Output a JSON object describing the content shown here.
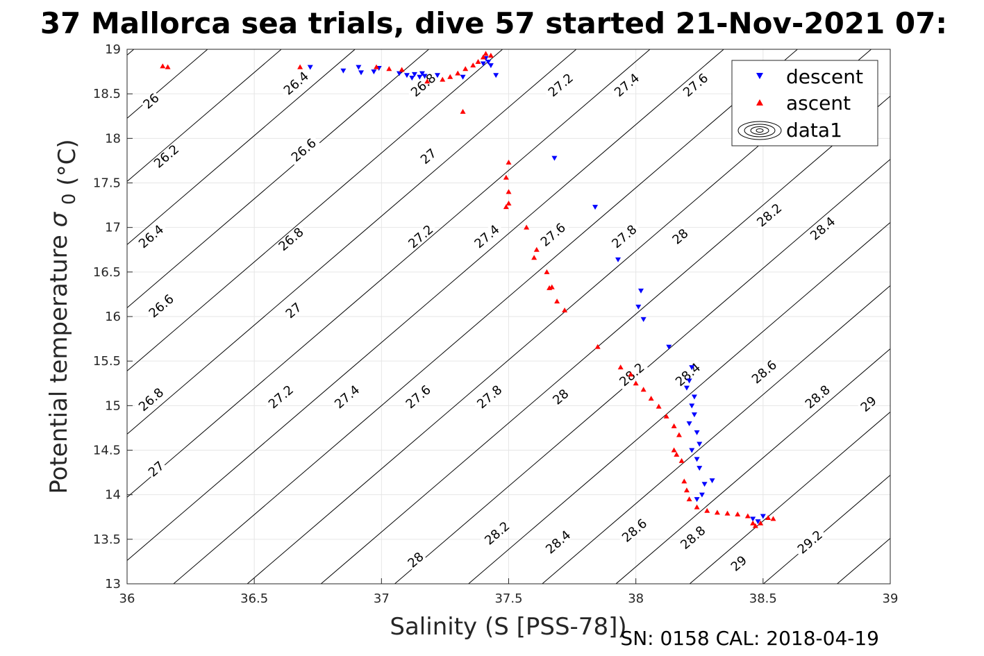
{
  "chart_data": {
    "type": "scatter",
    "title": "37 Mallorca sea trials, dive 57 started 21-Nov-2021 07:",
    "xlabel": "Salinity (S [PSS-78])",
    "ylabel_main": "Potential temperature",
    "ylabel_symbol": "σ",
    "ylabel_subscript": "0",
    "ylabel_unit": "(°C)",
    "xlim": [
      36,
      39
    ],
    "ylim": [
      13,
      19
    ],
    "xticks": [
      "36",
      "36.5",
      "37",
      "37.5",
      "38",
      "38.5",
      "39"
    ],
    "yticks": [
      "13",
      "13.5",
      "14",
      "14.5",
      "15",
      "15.5",
      "16",
      "16.5",
      "17",
      "17.5",
      "18",
      "18.5",
      "19"
    ],
    "grid": true,
    "legend_position": "top-right",
    "colors": {
      "descent": "#0000ff",
      "ascent": "#ff0000",
      "contour": "#000000",
      "grid": "#e6e6e6"
    },
    "series": [
      {
        "name": "descent",
        "marker": "triangle-down",
        "points": [
          [
            36.72,
            18.8
          ],
          [
            36.85,
            18.76
          ],
          [
            36.91,
            18.8
          ],
          [
            36.92,
            18.74
          ],
          [
            36.97,
            18.75
          ],
          [
            36.99,
            18.79
          ],
          [
            37.07,
            18.73
          ],
          [
            37.1,
            18.71
          ],
          [
            37.12,
            18.68
          ],
          [
            37.13,
            18.72
          ],
          [
            37.15,
            18.69
          ],
          [
            37.16,
            18.73
          ],
          [
            37.17,
            18.7
          ],
          [
            37.22,
            18.71
          ],
          [
            37.32,
            18.69
          ],
          [
            37.4,
            18.84
          ],
          [
            37.41,
            18.9
          ],
          [
            37.42,
            18.86
          ],
          [
            37.43,
            18.82
          ],
          [
            37.45,
            18.71
          ],
          [
            37.68,
            17.78
          ],
          [
            37.84,
            17.23
          ],
          [
            37.93,
            16.64
          ],
          [
            38.01,
            16.11
          ],
          [
            38.02,
            16.29
          ],
          [
            38.03,
            15.97
          ],
          [
            38.13,
            15.66
          ],
          [
            38.2,
            15.2
          ],
          [
            38.21,
            15.28
          ],
          [
            38.22,
            15.43
          ],
          [
            38.23,
            15.1
          ],
          [
            38.22,
            15.0
          ],
          [
            38.23,
            14.9
          ],
          [
            38.21,
            14.8
          ],
          [
            38.24,
            14.7
          ],
          [
            38.25,
            14.57
          ],
          [
            38.22,
            14.5
          ],
          [
            38.24,
            14.4
          ],
          [
            38.25,
            14.3
          ],
          [
            38.27,
            14.12
          ],
          [
            38.3,
            14.16
          ],
          [
            38.26,
            14.0
          ],
          [
            38.24,
            13.95
          ],
          [
            38.46,
            13.73
          ],
          [
            38.48,
            13.7
          ],
          [
            38.5,
            13.76
          ]
        ]
      },
      {
        "name": "ascent",
        "marker": "triangle-up",
        "points": [
          [
            36.14,
            18.81
          ],
          [
            36.16,
            18.8
          ],
          [
            36.68,
            18.8
          ],
          [
            36.98,
            18.8
          ],
          [
            37.03,
            18.78
          ],
          [
            37.08,
            18.77
          ],
          [
            37.18,
            18.64
          ],
          [
            37.24,
            18.66
          ],
          [
            37.27,
            18.69
          ],
          [
            37.3,
            18.73
          ],
          [
            37.33,
            18.78
          ],
          [
            37.36,
            18.82
          ],
          [
            37.38,
            18.86
          ],
          [
            37.4,
            18.91
          ],
          [
            37.41,
            18.95
          ],
          [
            37.43,
            18.93
          ],
          [
            37.32,
            18.3
          ],
          [
            37.5,
            17.73
          ],
          [
            37.49,
            17.56
          ],
          [
            37.5,
            17.4
          ],
          [
            37.5,
            17.27
          ],
          [
            37.49,
            17.23
          ],
          [
            37.57,
            17.0
          ],
          [
            37.61,
            16.75
          ],
          [
            37.6,
            16.66
          ],
          [
            37.65,
            16.5
          ],
          [
            37.66,
            16.32
          ],
          [
            37.67,
            16.33
          ],
          [
            37.69,
            16.17
          ],
          [
            37.72,
            16.07
          ],
          [
            37.85,
            15.66
          ],
          [
            37.94,
            15.43
          ],
          [
            37.98,
            15.35
          ],
          [
            38.0,
            15.25
          ],
          [
            38.03,
            15.18
          ],
          [
            38.06,
            15.08
          ],
          [
            38.09,
            14.99
          ],
          [
            38.12,
            14.88
          ],
          [
            38.15,
            14.77
          ],
          [
            38.17,
            14.67
          ],
          [
            38.15,
            14.5
          ],
          [
            38.16,
            14.45
          ],
          [
            38.18,
            14.38
          ],
          [
            38.19,
            14.15
          ],
          [
            38.2,
            14.05
          ],
          [
            38.21,
            13.95
          ],
          [
            38.24,
            13.86
          ],
          [
            38.28,
            13.82
          ],
          [
            38.32,
            13.8
          ],
          [
            38.36,
            13.79
          ],
          [
            38.4,
            13.78
          ],
          [
            38.44,
            13.76
          ],
          [
            38.46,
            13.68
          ],
          [
            38.47,
            13.65
          ],
          [
            38.49,
            13.68
          ],
          [
            38.52,
            13.74
          ],
          [
            38.54,
            13.73
          ]
        ]
      },
      {
        "name": "data1",
        "marker": "contour-icon",
        "points": []
      }
    ],
    "contours": {
      "label_values": [
        "26",
        "26.2",
        "26.4",
        "26.6",
        "26.8",
        "27",
        "27.2",
        "27.4",
        "27.6",
        "27.8",
        "28",
        "28.2",
        "28.4",
        "28.6",
        "28.8",
        "29",
        "29.2"
      ],
      "labels": [
        {
          "text": "26",
          "x": 36.1,
          "y": 18.4
        },
        {
          "text": "26.2",
          "x": 36.16,
          "y": 17.78
        },
        {
          "text": "26.4",
          "x": 36.1,
          "y": 16.88
        },
        {
          "text": "26.6",
          "x": 36.14,
          "y": 16.1
        },
        {
          "text": "26.8",
          "x": 36.1,
          "y": 15.05
        },
        {
          "text": "27",
          "x": 36.12,
          "y": 14.27
        },
        {
          "text": "26.4",
          "x": 36.67,
          "y": 18.6
        },
        {
          "text": "26.6",
          "x": 36.7,
          "y": 17.85
        },
        {
          "text": "26.8",
          "x": 36.65,
          "y": 16.85
        },
        {
          "text": "27",
          "x": 36.66,
          "y": 16.05
        },
        {
          "text": "27.2",
          "x": 36.61,
          "y": 15.08
        },
        {
          "text": "27.4",
          "x": 36.87,
          "y": 15.08
        },
        {
          "text": "26.8",
          "x": 37.17,
          "y": 18.58
        },
        {
          "text": "27",
          "x": 37.19,
          "y": 17.78
        },
        {
          "text": "27.2",
          "x": 37.16,
          "y": 16.88
        },
        {
          "text": "27.6",
          "x": 37.15,
          "y": 15.08
        },
        {
          "text": "27.2",
          "x": 37.71,
          "y": 18.58
        },
        {
          "text": "27.4",
          "x": 37.42,
          "y": 16.88
        },
        {
          "text": "27.6",
          "x": 37.68,
          "y": 16.9
        },
        {
          "text": "27.8",
          "x": 37.43,
          "y": 15.08
        },
        {
          "text": "27.4",
          "x": 37.97,
          "y": 18.58
        },
        {
          "text": "27.8",
          "x": 37.96,
          "y": 16.88
        },
        {
          "text": "28",
          "x": 37.71,
          "y": 15.08
        },
        {
          "text": "27.6",
          "x": 38.24,
          "y": 18.58
        },
        {
          "text": "28",
          "x": 38.18,
          "y": 16.88
        },
        {
          "text": "28.2",
          "x": 37.99,
          "y": 15.33
        },
        {
          "text": "28.4",
          "x": 38.21,
          "y": 15.33
        },
        {
          "text": "28.2",
          "x": 38.53,
          "y": 17.12
        },
        {
          "text": "28.4",
          "x": 38.74,
          "y": 16.97
        },
        {
          "text": "28.6",
          "x": 38.51,
          "y": 15.36
        },
        {
          "text": "28.8",
          "x": 38.72,
          "y": 15.08
        },
        {
          "text": "29",
          "x": 38.92,
          "y": 15.0
        },
        {
          "text": "28",
          "x": 37.14,
          "y": 13.25
        },
        {
          "text": "28.2",
          "x": 37.46,
          "y": 13.55
        },
        {
          "text": "28.4",
          "x": 37.7,
          "y": 13.45
        },
        {
          "text": "28.6",
          "x": 38.0,
          "y": 13.58
        },
        {
          "text": "28.8",
          "x": 38.23,
          "y": 13.5
        },
        {
          "text": "29",
          "x": 38.41,
          "y": 13.21
        },
        {
          "text": "29.2",
          "x": 38.69,
          "y": 13.45
        }
      ]
    }
  },
  "footer": "SN: 0158  CAL: 2018-04-19"
}
